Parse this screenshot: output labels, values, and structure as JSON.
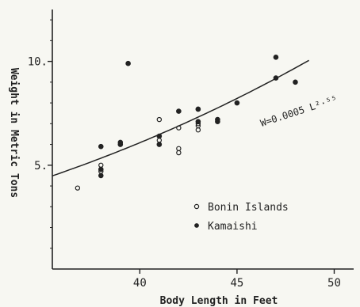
{
  "chart_data": {
    "type": "scatter",
    "title": "",
    "xlabel": "Body Length in Feet",
    "ylabel": "Weight in Metric Tons",
    "xlim": [
      35.5,
      51
    ],
    "ylim": [
      0,
      12.5
    ],
    "xticks": [
      40,
      45,
      50
    ],
    "xtick_labels": [
      "40",
      "45",
      "50"
    ],
    "yticks": [
      5,
      10
    ],
    "ytick_labels": [
      "5.",
      "10."
    ],
    "grid": false,
    "legend": "lower-right",
    "series": [
      {
        "name": "Bonin Islands",
        "marker": "open-circle",
        "points": [
          [
            36.8,
            3.9
          ],
          [
            38.0,
            4.7
          ],
          [
            38.0,
            5.0
          ],
          [
            41.0,
            7.2
          ],
          [
            41.0,
            6.2
          ],
          [
            42.0,
            6.8
          ],
          [
            42.0,
            5.8
          ],
          [
            42.0,
            5.6
          ],
          [
            43.0,
            7.7
          ],
          [
            43.0,
            6.9
          ],
          [
            43.0,
            6.7
          ],
          [
            43.0,
            7.0
          ]
        ]
      },
      {
        "name": "Kamaishi",
        "marker": "filled-circle",
        "points": [
          [
            38.0,
            5.9
          ],
          [
            38.0,
            4.5
          ],
          [
            38.0,
            4.8
          ],
          [
            39.0,
            6.0
          ],
          [
            39.0,
            6.1
          ],
          [
            39.4,
            9.9
          ],
          [
            41.0,
            6.4
          ],
          [
            41.0,
            6.0
          ],
          [
            42.0,
            7.6
          ],
          [
            43.0,
            7.7
          ],
          [
            43.0,
            7.1
          ],
          [
            44.0,
            7.1
          ],
          [
            44.0,
            7.2
          ],
          [
            45.0,
            8.0
          ],
          [
            47.0,
            10.2
          ],
          [
            47.0,
            9.2
          ],
          [
            48.0,
            9.0
          ]
        ]
      }
    ],
    "fit_curve": {
      "label": "W=0.0005 L²·⁵⁵",
      "coefficient": 0.0005,
      "exponent": 2.55,
      "x_range": [
        35.5,
        48.7
      ]
    }
  }
}
